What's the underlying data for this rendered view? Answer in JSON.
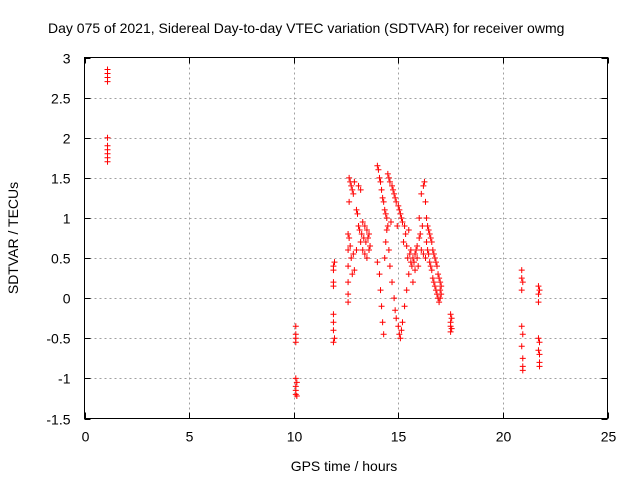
{
  "chart_data": {
    "type": "scatter",
    "title": "Day 075 of 2021, Sidereal Day-to-day VTEC variation (SDTVAR) for receiver owmg",
    "xlabel": "GPS time / hours",
    "ylabel": "SDTVAR / TECUs",
    "xlim": [
      0,
      25
    ],
    "ylim": [
      -1.5,
      3
    ],
    "xticks": [
      0,
      5,
      10,
      15,
      20,
      25
    ],
    "xtick_labels": [
      "0",
      "5",
      "10",
      "15",
      "20",
      "25"
    ],
    "yticks": [
      -1.5,
      -1,
      -0.5,
      0,
      0.5,
      1,
      1.5,
      2,
      2.5,
      3
    ],
    "ytick_labels": [
      "-1.5",
      "-1",
      "-0.5",
      "0",
      "0.5",
      "1",
      "1.5",
      "2",
      "2.5",
      "3"
    ],
    "grid": true,
    "marker": "+",
    "color": "#ff0000",
    "series": [
      {
        "name": "SDTVAR",
        "x": [
          1.1,
          1.1,
          1.1,
          1.1,
          1.1,
          1.1,
          1.1,
          1.1,
          1.1,
          1.1,
          10.1,
          10.1,
          10.1,
          10.1,
          10.1,
          10.1,
          10.1,
          10.1,
          10.15,
          10.15,
          11.9,
          11.9,
          11.9,
          11.9,
          11.9,
          11.9,
          11.9,
          11.9,
          11.95,
          11.95,
          12.6,
          12.6,
          12.6,
          12.6,
          12.6,
          12.6,
          12.65,
          12.65,
          12.65,
          12.7,
          12.7,
          12.75,
          12.75,
          12.8,
          12.8,
          12.85,
          12.85,
          12.9,
          12.9,
          13.0,
          13.0,
          13.05,
          13.1,
          13.1,
          13.15,
          13.2,
          13.2,
          13.25,
          13.3,
          13.3,
          13.35,
          13.4,
          13.4,
          13.45,
          13.5,
          13.5,
          13.55,
          13.6,
          13.6,
          13.65,
          14.0,
          14.0,
          14.05,
          14.1,
          14.1,
          14.15,
          14.15,
          14.2,
          14.2,
          14.25,
          14.25,
          14.3,
          14.3,
          14.35,
          14.35,
          14.4,
          14.4,
          14.45,
          14.45,
          14.5,
          14.5,
          14.55,
          14.55,
          14.6,
          14.6,
          14.65,
          14.7,
          14.7,
          14.75,
          14.8,
          14.8,
          14.85,
          14.85,
          14.9,
          14.9,
          14.95,
          15.0,
          15.0,
          15.05,
          15.05,
          15.1,
          15.1,
          15.15,
          15.15,
          15.2,
          15.2,
          15.25,
          15.3,
          15.3,
          15.35,
          15.4,
          15.4,
          15.45,
          15.5,
          15.5,
          15.55,
          15.6,
          15.6,
          15.65,
          15.7,
          15.7,
          15.75,
          15.8,
          15.8,
          15.85,
          15.9,
          15.9,
          15.95,
          16.0,
          16.0,
          16.05,
          16.1,
          16.1,
          16.15,
          16.2,
          16.2,
          16.25,
          16.3,
          16.3,
          16.35,
          16.35,
          16.4,
          16.4,
          16.45,
          16.45,
          16.5,
          16.5,
          16.55,
          16.55,
          16.6,
          16.6,
          16.65,
          16.65,
          16.7,
          16.7,
          16.75,
          16.75,
          16.8,
          16.8,
          16.85,
          16.85,
          16.9,
          16.9,
          16.95,
          16.95,
          17.0,
          17.0,
          17.0,
          17.05,
          17.05,
          17.5,
          17.5,
          17.5,
          17.5,
          17.55,
          17.55,
          20.9,
          20.9,
          20.9,
          20.9,
          20.9,
          20.95,
          20.95,
          20.95,
          20.95,
          20.95,
          21.7,
          21.7,
          21.7,
          21.7,
          21.7,
          21.75,
          21.75,
          21.75,
          21.75,
          21.75
        ],
        "y": [
          2.85,
          2.8,
          2.75,
          2.7,
          2.0,
          1.9,
          1.85,
          1.8,
          1.75,
          1.7,
          -0.35,
          -0.45,
          -0.5,
          -0.55,
          -1.0,
          -1.1,
          -1.15,
          -1.2,
          -1.05,
          -1.22,
          0.4,
          0.35,
          0.2,
          0.15,
          -0.2,
          -0.3,
          -0.4,
          -0.55,
          0.45,
          -0.5,
          0.8,
          0.6,
          0.4,
          0.2,
          0.05,
          -0.05,
          1.5,
          1.2,
          0.75,
          1.45,
          0.65,
          1.4,
          0.5,
          1.35,
          0.3,
          1.3,
          0.55,
          1.45,
          0.35,
          1.1,
          0.6,
          1.05,
          1.4,
          0.9,
          0.85,
          1.35,
          0.7,
          0.8,
          0.95,
          0.6,
          0.75,
          0.9,
          0.55,
          0.7,
          0.85,
          0.5,
          0.75,
          0.8,
          0.6,
          0.65,
          1.65,
          0.45,
          1.6,
          1.5,
          0.3,
          1.45,
          0.1,
          1.35,
          -0.1,
          1.25,
          -0.3,
          1.2,
          -0.45,
          1.1,
          0.5,
          1.05,
          0.7,
          1.0,
          0.85,
          1.55,
          0.9,
          1.5,
          0.6,
          1.45,
          0.4,
          0.95,
          1.4,
          0.2,
          1.35,
          1.3,
          0.0,
          1.25,
          -0.15,
          1.2,
          -0.25,
          0.9,
          1.15,
          -0.35,
          1.1,
          -0.45,
          1.05,
          -0.5,
          1.0,
          -0.4,
          0.95,
          -0.3,
          0.7,
          0.9,
          -0.1,
          0.8,
          0.1,
          0.65,
          0.5,
          0.3,
          0.85,
          0.55,
          0.6,
          0.45,
          0.4,
          0.5,
          0.2,
          0.45,
          0.55,
          0.35,
          0.6,
          0.65,
          0.5,
          0.4,
          1.0,
          0.75,
          0.8,
          1.3,
          0.6,
          0.9,
          1.4,
          0.55,
          1.45,
          1.2,
          0.5,
          1.0,
          0.7,
          0.9,
          0.6,
          0.85,
          0.55,
          0.8,
          0.45,
          0.75,
          0.4,
          0.7,
          0.35,
          0.6,
          0.25,
          0.55,
          0.2,
          0.5,
          0.15,
          0.45,
          0.1,
          0.4,
          0.05,
          0.3,
          0.0,
          0.25,
          -0.05,
          0.2,
          0.1,
          0.0,
          0.15,
          0.05,
          -0.2,
          -0.3,
          -0.35,
          -0.42,
          -0.25,
          -0.38,
          0.35,
          0.25,
          0.1,
          -0.35,
          -0.6,
          0.2,
          -0.45,
          -0.75,
          -0.85,
          -0.9,
          0.15,
          0.05,
          -0.05,
          -0.5,
          -0.65,
          0.1,
          -0.55,
          -0.7,
          -0.8,
          -0.85
        ]
      }
    ]
  }
}
